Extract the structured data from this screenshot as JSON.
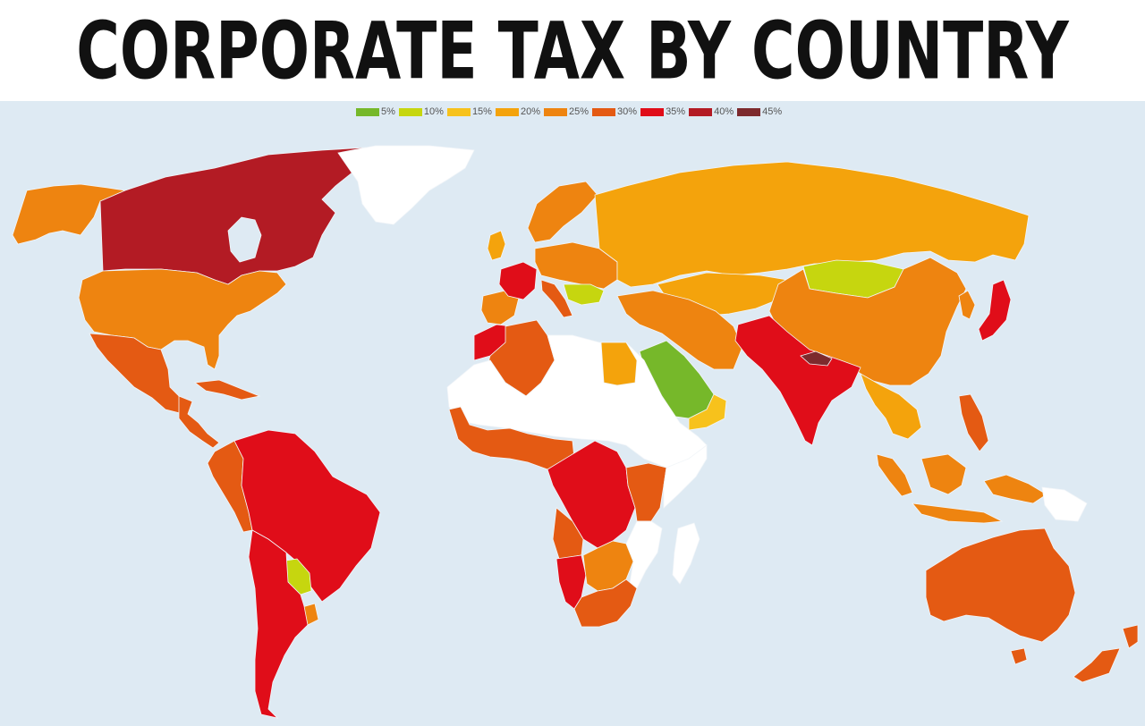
{
  "title": "CORPORATE TAX BY COUNTRY",
  "colors": {
    "ocean": "#deeaf3",
    "no_data": "#ffffff",
    "rate_5": "#76b82a",
    "rate_10": "#c6d60f",
    "rate_15": "#f7c21c",
    "rate_20": "#f4a30c",
    "rate_25": "#ee8410",
    "rate_30": "#e45a13",
    "rate_35": "#e00d19",
    "rate_40": "#b31b24",
    "rate_45": "#7d2a2d"
  },
  "legend": [
    {
      "label": "5%",
      "color": "#76b82a"
    },
    {
      "label": "10%",
      "color": "#c6d60f"
    },
    {
      "label": "15%",
      "color": "#f7c21c"
    },
    {
      "label": "20%",
      "color": "#f4a30c"
    },
    {
      "label": "25%",
      "color": "#ee8410"
    },
    {
      "label": "30%",
      "color": "#e45a13"
    },
    {
      "label": "35%",
      "color": "#e00d19"
    },
    {
      "label": "40%",
      "color": "#b31b24"
    },
    {
      "label": "45%",
      "color": "#7d2a2d"
    }
  ],
  "regions": [
    {
      "name": "alaska",
      "rate": "25%"
    },
    {
      "name": "canada",
      "rate": "40%"
    },
    {
      "name": "greenland",
      "rate": "no data"
    },
    {
      "name": "usa",
      "rate": "25%"
    },
    {
      "name": "mexico",
      "rate": "30%"
    },
    {
      "name": "central-america",
      "rate": "30%"
    },
    {
      "name": "brazil-and-north-south-america",
      "rate": "35%"
    },
    {
      "name": "andes-west-south-america",
      "rate": "30%"
    },
    {
      "name": "paraguay",
      "rate": "10%"
    },
    {
      "name": "argentina-chile-south",
      "rate": "35%"
    },
    {
      "name": "uruguay",
      "rate": "25%"
    },
    {
      "name": "iberia",
      "rate": "25%"
    },
    {
      "name": "france",
      "rate": "35%"
    },
    {
      "name": "uk-ireland",
      "rate": "20%"
    },
    {
      "name": "scandinavia",
      "rate": "25%"
    },
    {
      "name": "central-europe",
      "rate": "25%"
    },
    {
      "name": "balkans",
      "rate": "10%"
    },
    {
      "name": "russia",
      "rate": "20%"
    },
    {
      "name": "mongolia",
      "rate": "10%"
    },
    {
      "name": "china",
      "rate": "25%"
    },
    {
      "name": "japan",
      "rate": "35%"
    },
    {
      "name": "korea",
      "rate": "25%"
    },
    {
      "name": "central-asia",
      "rate": "20%"
    },
    {
      "name": "middle-east-iran",
      "rate": "25%"
    },
    {
      "name": "saudi-arabia",
      "rate": "5%"
    },
    {
      "name": "oman-yemen",
      "rate": "15%"
    },
    {
      "name": "india-pakistan",
      "rate": "35%"
    },
    {
      "name": "nepal",
      "rate": "45%"
    },
    {
      "name": "southeast-asia",
      "rate": "20%"
    },
    {
      "name": "philippines",
      "rate": "30%"
    },
    {
      "name": "indonesia",
      "rate": "25%"
    },
    {
      "name": "papua",
      "rate": "no data"
    },
    {
      "name": "australia",
      "rate": "30%"
    },
    {
      "name": "new-zealand",
      "rate": "30%"
    },
    {
      "name": "morocco",
      "rate": "35%"
    },
    {
      "name": "algeria",
      "rate": "30%"
    },
    {
      "name": "sahara-north-africa",
      "rate": "no data"
    },
    {
      "name": "egypt",
      "rate": "20%"
    },
    {
      "name": "west-africa",
      "rate": "30%"
    },
    {
      "name": "nigeria",
      "rate": "30%"
    },
    {
      "name": "central-africa",
      "rate": "35%"
    },
    {
      "name": "east-africa",
      "rate": "30%"
    },
    {
      "name": "horn-of-africa",
      "rate": "no data"
    },
    {
      "name": "angola",
      "rate": "30%"
    },
    {
      "name": "namibia",
      "rate": "35%"
    },
    {
      "name": "zambia-zimbabwe",
      "rate": "25%"
    },
    {
      "name": "mozambique",
      "rate": "no data"
    },
    {
      "name": "south-africa",
      "rate": "30%"
    },
    {
      "name": "madagascar",
      "rate": "no data"
    }
  ]
}
